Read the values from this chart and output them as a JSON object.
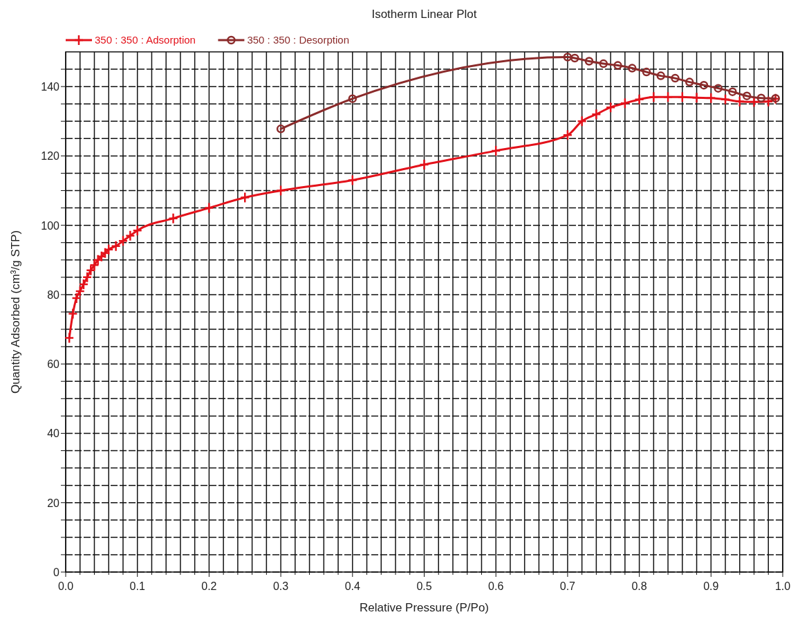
{
  "chart_data": {
    "type": "line",
    "title": "Isotherm Linear Plot",
    "xlabel": "Relative Pressure (P/Po)",
    "ylabel": "Quantity Adsorbed (cm³/g STP)",
    "xlim": [
      0,
      1
    ],
    "ylim": [
      0,
      150
    ],
    "xticks": [
      {
        "value": 0,
        "label": "0.0"
      },
      {
        "value": 0.02,
        "label": null
      },
      {
        "value": 0.04,
        "label": null
      },
      {
        "value": 0.06,
        "label": null
      },
      {
        "value": 0.08,
        "label": null
      },
      0.1,
      {
        "value": 0.12,
        "label": null
      },
      {
        "value": 0.14,
        "label": null
      },
      {
        "value": 0.16,
        "label": null
      },
      {
        "value": 0.18,
        "label": null
      },
      0.2,
      {
        "value": 0.22,
        "label": null
      },
      {
        "value": 0.24,
        "label": null
      },
      {
        "value": 0.26,
        "label": null
      },
      {
        "value": 0.28,
        "label": null
      },
      0.3,
      {
        "value": 0.32,
        "label": null
      },
      {
        "value": 0.34,
        "label": null
      },
      {
        "value": 0.36,
        "label": null
      },
      {
        "value": 0.38,
        "label": null
      },
      0.4,
      {
        "value": 0.42,
        "label": null
      },
      {
        "value": 0.44,
        "label": null
      },
      {
        "value": 0.46,
        "label": null
      },
      {
        "value": 0.48,
        "label": null
      },
      0.5,
      {
        "value": 0.52,
        "label": null
      },
      {
        "value": 0.54,
        "label": null
      },
      {
        "value": 0.56,
        "label": null
      },
      {
        "value": 0.58,
        "label": null
      },
      0.6,
      {
        "value": 0.62,
        "label": null
      },
      {
        "value": 0.64,
        "label": null
      },
      {
        "value": 0.66,
        "label": null
      },
      {
        "value": 0.68,
        "label": null
      },
      0.7,
      {
        "value": 0.72,
        "label": null
      },
      {
        "value": 0.74,
        "label": null
      },
      {
        "value": 0.76,
        "label": null
      },
      {
        "value": 0.78,
        "label": null
      },
      0.8,
      {
        "value": 0.82,
        "label": null
      },
      {
        "value": 0.84,
        "label": null
      },
      {
        "value": 0.86,
        "label": null
      },
      {
        "value": 0.88,
        "label": null
      },
      0.9,
      {
        "value": 0.92,
        "label": null
      },
      {
        "value": 0.94,
        "label": null
      },
      {
        "value": 0.96,
        "label": null
      },
      {
        "value": 0.98,
        "label": null
      },
      {
        "value": 1,
        "label": "1.0"
      }
    ],
    "yticks": [
      0,
      {
        "value": 5,
        "label": null
      },
      {
        "value": 10,
        "label": null
      },
      {
        "value": 15,
        "label": null
      },
      20,
      {
        "value": 25,
        "label": null
      },
      {
        "value": 30,
        "label": null
      },
      {
        "value": 35,
        "label": null
      },
      40,
      {
        "value": 45,
        "label": null
      },
      {
        "value": 50,
        "label": null
      },
      {
        "value": 55,
        "label": null
      },
      60,
      {
        "value": 65,
        "label": null
      },
      {
        "value": 70,
        "label": null
      },
      {
        "value": 75,
        "label": null
      },
      80,
      {
        "value": 85,
        "label": null
      },
      {
        "value": 90,
        "label": null
      },
      {
        "value": 95,
        "label": null
      },
      100,
      {
        "value": 105,
        "label": null
      },
      {
        "value": 110,
        "label": null
      },
      {
        "value": 115,
        "label": null
      },
      120,
      {
        "value": 125,
        "label": null
      },
      {
        "value": 130,
        "label": null
      },
      {
        "value": 135,
        "label": null
      },
      140,
      {
        "value": 145,
        "label": null
      }
    ],
    "grid": true,
    "legend": "top left",
    "series": [
      {
        "name": "350 : 350 : Adsorption",
        "color": "#e3121b",
        "marker": "cross",
        "x": [
          0.005,
          0.01,
          0.015,
          0.02,
          0.025,
          0.03,
          0.035,
          0.04,
          0.045,
          0.05,
          0.055,
          0.06,
          0.07,
          0.08,
          0.09,
          0.1,
          0.15,
          0.2,
          0.25,
          0.3,
          0.4,
          0.5,
          0.6,
          0.7,
          0.72,
          0.74,
          0.76,
          0.78,
          0.8,
          0.82,
          0.84,
          0.86,
          0.88,
          0.9,
          0.92,
          0.94,
          0.96,
          0.98,
          0.99
        ],
        "values": [
          67.5,
          74.5,
          79,
          81,
          83,
          85,
          87,
          88.5,
          90,
          91,
          92,
          93,
          94,
          95.5,
          97,
          98.5,
          102,
          105,
          108,
          110,
          113,
          117.5,
          121.5,
          126,
          130,
          132,
          134,
          135.2,
          136.3,
          137,
          137,
          137,
          136.8,
          136.7,
          136.3,
          135.7,
          135.6,
          135.7,
          136.5
        ]
      },
      {
        "name": "350 : 350 : Desorption",
        "color": "#8b2b2b",
        "marker": "circle",
        "x": [
          0.3,
          0.4,
          0.7,
          0.71,
          0.73,
          0.75,
          0.77,
          0.79,
          0.81,
          0.83,
          0.85,
          0.87,
          0.89,
          0.91,
          0.93,
          0.95,
          0.97,
          0.99
        ],
        "values": [
          127.8,
          136.5,
          148.5,
          148.2,
          147.3,
          146.6,
          146.1,
          145.3,
          144.2,
          143.1,
          142.4,
          141.3,
          140.4,
          139.5,
          138.5,
          137.3,
          136.7,
          136.6
        ]
      }
    ]
  }
}
